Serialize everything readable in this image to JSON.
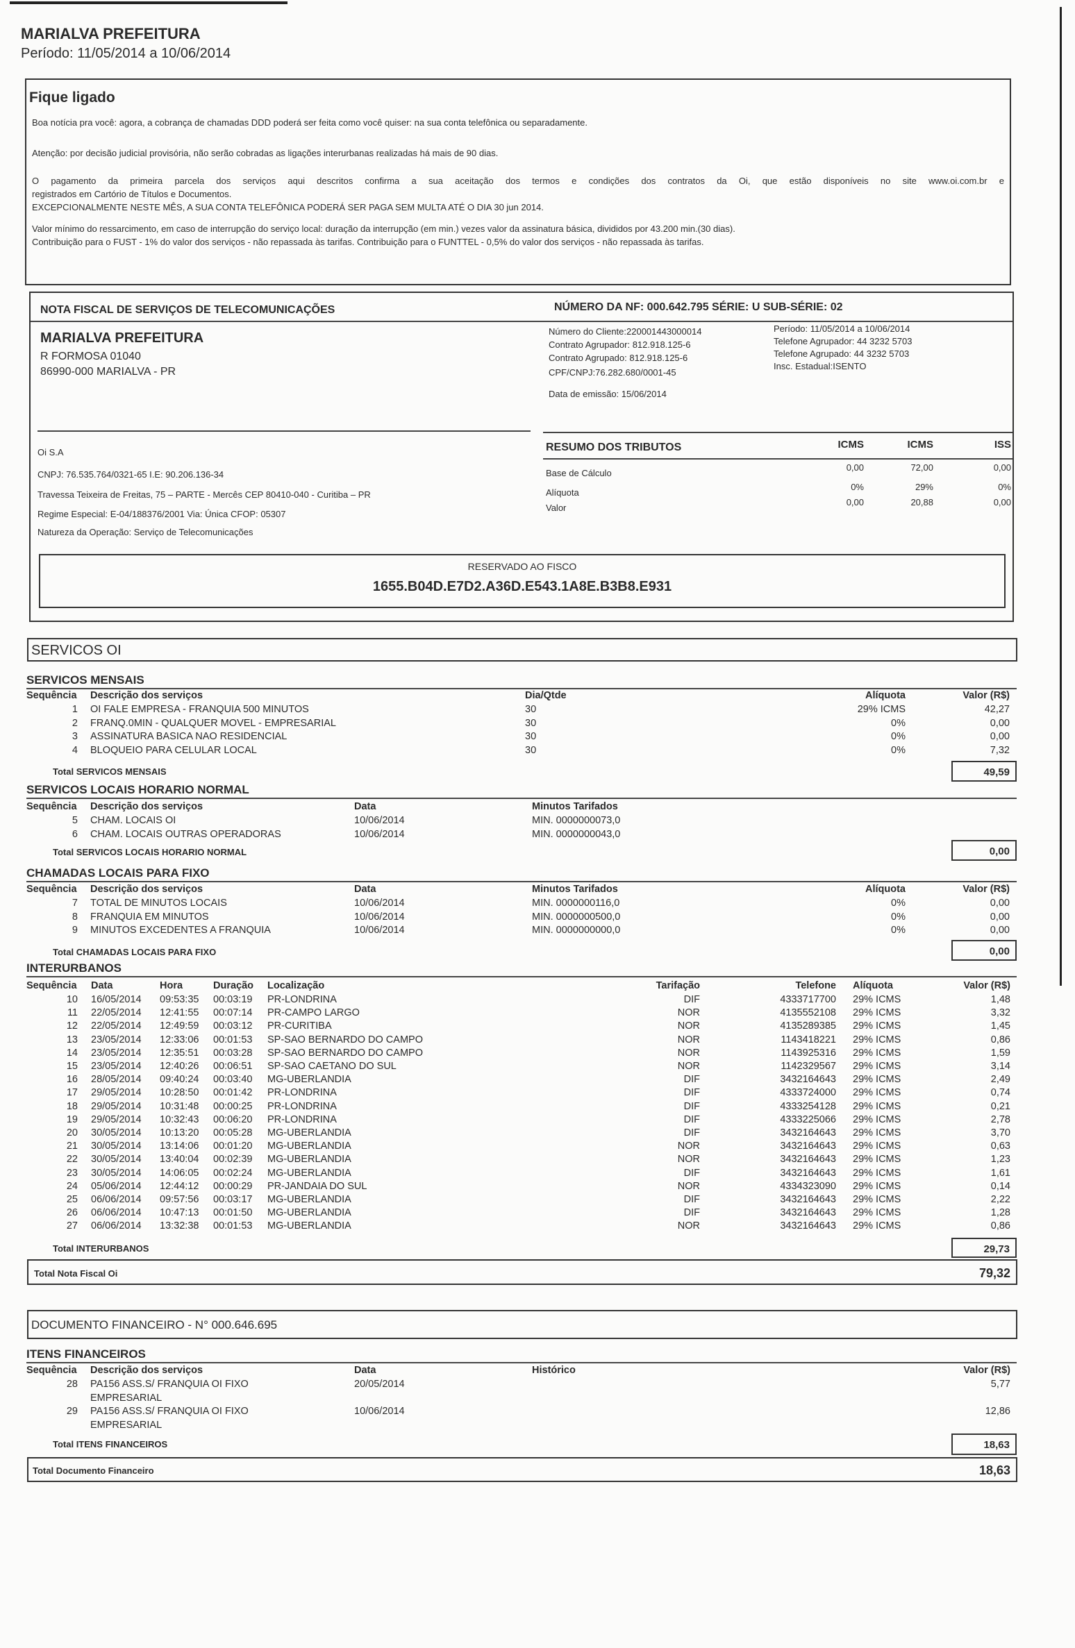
{
  "header": {
    "name": "MARIALVA PREFEITURA",
    "period": "Período: 11/05/2014 a 10/06/2014"
  },
  "notice": {
    "title": "Fique ligado",
    "lines": [
      "Boa notícia pra você: agora, a cobrança de chamadas DDD poderá ser feita como você quiser: na sua conta telefônica ou separadamente.",
      "Atenção: por decisão judicial provisória, não serão cobradas as ligações interurbanas realizadas há mais de 90 dias.",
      "O pagamento da primeira parcela dos serviços aqui descritos confirma a sua aceitação dos termos e condições dos contratos da Oi, que estão disponíveis no site www.oi.com.br e",
      "registrados em Cartório de Títulos e Documentos.",
      "EXCEPCIONALMENTE NESTE MÊS, A SUA CONTA TELEFÔNICA PODERÁ SER PAGA SEM MULTA ATÉ O DIA  30 jun 2014.",
      "Valor mínimo do ressarcimento, em caso de interrupção do serviço local: duração da interrupção (em min.) vezes valor da assinatura básica, divididos por 43.200 min.(30 dias).",
      "Contribuição para o FUST - 1% do valor dos serviços - não repassada às tarifas.  Contribuição para o FUNTTEL - 0,5% do valor dos serviços - não repassada às tarifas."
    ]
  },
  "nota": {
    "title": "NOTA FISCAL DE SERVIÇOS DE TELECOMUNICAÇÕES",
    "numero": "NÚMERO DA NF: 000.642.795  SÉRIE: U SUB-SÉRIE: 02",
    "client": {
      "name": "MARIALVA PREFEITURA",
      "street": "R  FORMOSA 01040",
      "city": "86990-000 MARIALVA - PR"
    },
    "info_left": [
      "Número do Cliente:220001443000014",
      "Contrato Agrupador: 812.918.125-6",
      "Contrato Agrupado:  812.918.125-6",
      "CPF/CNPJ:76.282.680/0001-45"
    ],
    "emissao": "Data de emissão: 15/06/2014",
    "info_right": [
      "Período: 11/05/2014 a 10/06/2014",
      "Telefone Agrupador: 44 3232 5703",
      "Telefone Agrupado: 44 3232 5703",
      "Insc. Estadual:ISENTO"
    ],
    "company": [
      "Oi S.A",
      "CNPJ: 76.535.764/0321-65  I.E: 90.206.136-34",
      "Travessa Teixeira de Freitas, 75 – PARTE - Mercês  CEP 80410-040 - Curitiba – PR",
      "Regime Especial: E-04/188376/2001 Via: Única CFOP: 05307",
      "Natureza da Operação: Serviço de Telecomunicações"
    ],
    "tributos": {
      "title": "RESUMO DOS TRIBUTOS",
      "cols": [
        "ICMS",
        "ICMS",
        "ISS"
      ],
      "rows": [
        {
          "label": "Base de Cálculo",
          "v": [
            "0,00",
            "72,00",
            "0,00"
          ]
        },
        {
          "label": "Alíquota",
          "v": [
            "0%",
            "29%",
            "0%"
          ]
        },
        {
          "label": "Valor",
          "v": [
            "0,00",
            "20,88",
            "0,00"
          ]
        }
      ]
    },
    "fisco": {
      "label": "RESERVADO AO FISCO",
      "code": "1655.B04D.E7D2.A36D.E543.1A8E.B3B8.E931"
    }
  },
  "servicos_title": "SERVICOS OI",
  "mensais": {
    "title": "SERVICOS MENSAIS",
    "headers": {
      "seq": "Sequência",
      "desc": "Descrição dos serviços",
      "qtd": "Dia/Qtde",
      "aliq": "Alíquota",
      "valor": "Valor (R$)"
    },
    "rows": [
      {
        "seq": "1",
        "desc": "OI FALE EMPRESA - FRANQUIA 500 MINUTOS",
        "qtd": "30",
        "aliq": "29% ICMS",
        "valor": "42,27"
      },
      {
        "seq": "2",
        "desc": "FRANQ.0MIN - QUALQUER MOVEL - EMPRESARIAL",
        "qtd": "30",
        "aliq": "0%",
        "valor": "0,00"
      },
      {
        "seq": "3",
        "desc": "ASSINATURA BASICA NAO RESIDENCIAL",
        "qtd": "30",
        "aliq": "0%",
        "valor": "0,00"
      },
      {
        "seq": "4",
        "desc": "BLOQUEIO PARA CELULAR LOCAL",
        "qtd": "30",
        "aliq": "0%",
        "valor": "7,32"
      }
    ],
    "total_label": "Total SERVICOS MENSAIS",
    "total": "49,59"
  },
  "locais": {
    "title": "SERVICOS LOCAIS HORARIO NORMAL",
    "headers": {
      "seq": "Sequência",
      "desc": "Descrição dos serviços",
      "data": "Data",
      "min": "Minutos Tarifados"
    },
    "rows": [
      {
        "seq": "5",
        "desc": "CHAM. LOCAIS OI",
        "data": "10/06/2014",
        "min": "MIN. 0000000073,0"
      },
      {
        "seq": "6",
        "desc": "CHAM. LOCAIS OUTRAS OPERADORAS",
        "data": "10/06/2014",
        "min": "MIN. 0000000043,0"
      }
    ],
    "total_label": "Total SERVICOS LOCAIS HORARIO NORMAL",
    "total": "0,00"
  },
  "fixo": {
    "title": "CHAMADAS LOCAIS PARA FIXO",
    "headers": {
      "seq": "Sequência",
      "desc": "Descrição dos serviços",
      "data": "Data",
      "min": "Minutos Tarifados",
      "aliq": "Alíquota",
      "valor": "Valor (R$)"
    },
    "rows": [
      {
        "seq": "7",
        "desc": "TOTAL DE MINUTOS LOCAIS",
        "data": "10/06/2014",
        "min": "MIN. 0000000116,0",
        "aliq": "0%",
        "valor": "0,00"
      },
      {
        "seq": "8",
        "desc": "FRANQUIA EM MINUTOS",
        "data": "10/06/2014",
        "min": "MIN. 0000000500,0",
        "aliq": "0%",
        "valor": "0,00"
      },
      {
        "seq": "9",
        "desc": "MINUTOS EXCEDENTES A FRANQUIA",
        "data": "10/06/2014",
        "min": "MIN. 0000000000,0",
        "aliq": "0%",
        "valor": "0,00"
      }
    ],
    "total_label": "Total CHAMADAS LOCAIS PARA FIXO",
    "total": "0,00"
  },
  "interurbanos": {
    "title": "INTERURBANOS",
    "headers": {
      "seq": "Sequência",
      "data": "Data",
      "hora": "Hora",
      "dur": "Duração",
      "local": "Localização",
      "tarif": "Tarifação",
      "tel": "Telefone",
      "aliq": "Alíquota",
      "valor": "Valor (R$)"
    },
    "rows": [
      {
        "seq": "10",
        "data": "16/05/2014",
        "hora": "09:53:35",
        "dur": "00:03:19",
        "local": "PR-LONDRINA",
        "tarif": "DIF",
        "tel": "4333717700",
        "aliq": "29% ICMS",
        "valor": "1,48"
      },
      {
        "seq": "11",
        "data": "22/05/2014",
        "hora": "12:41:55",
        "dur": "00:07:14",
        "local": "PR-CAMPO LARGO",
        "tarif": "NOR",
        "tel": "4135552108",
        "aliq": "29% ICMS",
        "valor": "3,32"
      },
      {
        "seq": "12",
        "data": "22/05/2014",
        "hora": "12:49:59",
        "dur": "00:03:12",
        "local": "PR-CURITIBA",
        "tarif": "NOR",
        "tel": "4135289385",
        "aliq": "29% ICMS",
        "valor": "1,45"
      },
      {
        "seq": "13",
        "data": "23/05/2014",
        "hora": "12:33:06",
        "dur": "00:01:53",
        "local": "SP-SAO BERNARDO DO CAMPO",
        "tarif": "NOR",
        "tel": "1143418221",
        "aliq": "29% ICMS",
        "valor": "0,86"
      },
      {
        "seq": "14",
        "data": "23/05/2014",
        "hora": "12:35:51",
        "dur": "00:03:28",
        "local": "SP-SAO BERNARDO DO CAMPO",
        "tarif": "NOR",
        "tel": "1143925316",
        "aliq": "29% ICMS",
        "valor": "1,59"
      },
      {
        "seq": "15",
        "data": "23/05/2014",
        "hora": "12:40:26",
        "dur": "00:06:51",
        "local": "SP-SAO CAETANO DO SUL",
        "tarif": "NOR",
        "tel": "1142329567",
        "aliq": "29% ICMS",
        "valor": "3,14"
      },
      {
        "seq": "16",
        "data": "28/05/2014",
        "hora": "09:40:24",
        "dur": "00:03:40",
        "local": "MG-UBERLANDIA",
        "tarif": "DIF",
        "tel": "3432164643",
        "aliq": "29% ICMS",
        "valor": "2,49"
      },
      {
        "seq": "17",
        "data": "29/05/2014",
        "hora": "10:28:50",
        "dur": "00:01:42",
        "local": "PR-LONDRINA",
        "tarif": "DIF",
        "tel": "4333724000",
        "aliq": "29% ICMS",
        "valor": "0,74"
      },
      {
        "seq": "18",
        "data": "29/05/2014",
        "hora": "10:31:48",
        "dur": "00:00:25",
        "local": "PR-LONDRINA",
        "tarif": "DIF",
        "tel": "4333254128",
        "aliq": "29% ICMS",
        "valor": "0,21"
      },
      {
        "seq": "19",
        "data": "29/05/2014",
        "hora": "10:32:43",
        "dur": "00:06:20",
        "local": "PR-LONDRINA",
        "tarif": "DIF",
        "tel": "4333225066",
        "aliq": "29% ICMS",
        "valor": "2,78"
      },
      {
        "seq": "20",
        "data": "30/05/2014",
        "hora": "10:13:20",
        "dur": "00:05:28",
        "local": "MG-UBERLANDIA",
        "tarif": "DIF",
        "tel": "3432164643",
        "aliq": "29% ICMS",
        "valor": "3,70"
      },
      {
        "seq": "21",
        "data": "30/05/2014",
        "hora": "13:14:06",
        "dur": "00:01:20",
        "local": "MG-UBERLANDIA",
        "tarif": "NOR",
        "tel": "3432164643",
        "aliq": "29% ICMS",
        "valor": "0,63"
      },
      {
        "seq": "22",
        "data": "30/05/2014",
        "hora": "13:40:04",
        "dur": "00:02:39",
        "local": "MG-UBERLANDIA",
        "tarif": "NOR",
        "tel": "3432164643",
        "aliq": "29% ICMS",
        "valor": "1,23"
      },
      {
        "seq": "23",
        "data": "30/05/2014",
        "hora": "14:06:05",
        "dur": "00:02:24",
        "local": "MG-UBERLANDIA",
        "tarif": "DIF",
        "tel": "3432164643",
        "aliq": "29% ICMS",
        "valor": "1,61"
      },
      {
        "seq": "24",
        "data": "05/06/2014",
        "hora": "12:44:12",
        "dur": "00:00:29",
        "local": "PR-JANDAIA DO SUL",
        "tarif": "NOR",
        "tel": "4334323090",
        "aliq": "29% ICMS",
        "valor": "0,14"
      },
      {
        "seq": "25",
        "data": "06/06/2014",
        "hora": "09:57:56",
        "dur": "00:03:17",
        "local": "MG-UBERLANDIA",
        "tarif": "DIF",
        "tel": "3432164643",
        "aliq": "29% ICMS",
        "valor": "2,22"
      },
      {
        "seq": "26",
        "data": "06/06/2014",
        "hora": "10:47:13",
        "dur": "00:01:50",
        "local": "MG-UBERLANDIA",
        "tarif": "DIF",
        "tel": "3432164643",
        "aliq": "29% ICMS",
        "valor": "1,28"
      },
      {
        "seq": "27",
        "data": "06/06/2014",
        "hora": "13:32:38",
        "dur": "00:01:53",
        "local": "MG-UBERLANDIA",
        "tarif": "NOR",
        "tel": "3432164643",
        "aliq": "29% ICMS",
        "valor": "0,86"
      }
    ],
    "total_label": "Total INTERURBANOS",
    "total": "29,73"
  },
  "total_nota": {
    "label": "Total Nota Fiscal  Oi",
    "value": "79,32"
  },
  "doc_fin": {
    "title": "DOCUMENTO FINANCEIRO - N° 000.646.695"
  },
  "itens": {
    "title": "ITENS FINANCEIROS",
    "headers": {
      "seq": "Sequência",
      "desc": "Descrição dos serviços",
      "data": "Data",
      "hist": "Histórico",
      "valor": "Valor (R$)"
    },
    "rows": [
      {
        "seq": "28",
        "desc": "PA156 ASS.S/ FRANQUIA OI FIXO",
        "desc2": "EMPRESARIAL",
        "data": "20/05/2014",
        "valor": "5,77"
      },
      {
        "seq": "29",
        "desc": "PA156 ASS.S/ FRANQUIA OI FIXO",
        "desc2": "EMPRESARIAL",
        "data": "10/06/2014",
        "valor": "12,86"
      }
    ],
    "total_label": "Total ITENS FINANCEIROS",
    "total": "18,63"
  },
  "total_doc": {
    "label": "Total Documento Financeiro",
    "value": "18,63"
  }
}
